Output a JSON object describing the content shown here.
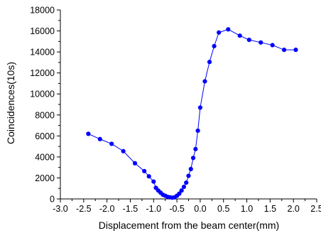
{
  "chart_data": {
    "type": "line",
    "title": "",
    "xlabel": "Displacement from the beam center(mm)",
    "ylabel": "Coincidences(10s)",
    "xlim": [
      -3.0,
      2.5
    ],
    "ylim": [
      0,
      18000
    ],
    "xticks": [
      -3.0,
      -2.5,
      -2.0,
      -1.5,
      -1.0,
      -0.5,
      0.0,
      0.5,
      1.0,
      1.5,
      2.0,
      2.5
    ],
    "xtick_labels": [
      "-3.0",
      "-2.5",
      "-2.0",
      "-1.5",
      "-1.0",
      "-0.5",
      "0.0",
      "0.5",
      "1.0",
      "1.5",
      "2.0",
      "2.5"
    ],
    "yticks": [
      0,
      2000,
      4000,
      6000,
      8000,
      10000,
      12000,
      14000,
      16000,
      18000
    ],
    "ytick_labels": [
      "0",
      "2000",
      "4000",
      "6000",
      "8000",
      "10000",
      "12000",
      "14000",
      "16000",
      "18000"
    ],
    "grid": false,
    "legend": "none",
    "series_color": "#0000ff",
    "marker": "filled-circle",
    "series": [
      {
        "x": [
          -2.4,
          -2.15,
          -1.9,
          -1.65,
          -1.4,
          -1.2,
          -1.1,
          -1.0,
          -0.95,
          -0.9,
          -0.85,
          -0.8,
          -0.75,
          -0.7,
          -0.65,
          -0.6,
          -0.55,
          -0.5,
          -0.45,
          -0.4,
          -0.35,
          -0.3,
          -0.25,
          -0.2,
          -0.15,
          -0.1,
          -0.05,
          0.0,
          0.1,
          0.2,
          0.3,
          0.4,
          0.6,
          0.85,
          1.05,
          1.3,
          1.55,
          1.8,
          2.05
        ],
        "y": [
          6200,
          5700,
          5250,
          4550,
          3400,
          2650,
          2150,
          1650,
          1050,
          800,
          600,
          400,
          300,
          200,
          150,
          120,
          150,
          300,
          500,
          800,
          1150,
          1550,
          2200,
          2850,
          3900,
          4750,
          6500,
          8700,
          11200,
          13050,
          14550,
          15850,
          16150,
          15550,
          15150,
          14900,
          14650,
          14200,
          14200
        ]
      }
    ]
  }
}
